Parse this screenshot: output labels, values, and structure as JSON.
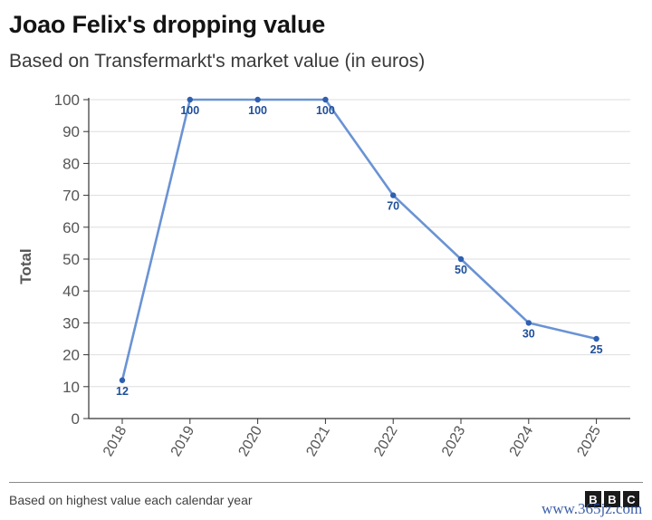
{
  "header": {
    "title": "Joao Felix's dropping value",
    "subtitle": "Based on Transfermarkt's market value (in euros)"
  },
  "footer": {
    "note": "Based on highest value each calendar year",
    "logo_letters": [
      "B",
      "B",
      "C"
    ],
    "watermark": "www.365jz.com"
  },
  "colors": {
    "line": "#6a93d4",
    "point": "#2f5fb0",
    "label": "#1f4f99",
    "grid": "#dedede",
    "axis": "#333333",
    "tick_text": "#555555"
  },
  "chart_data": {
    "type": "line",
    "title": "Joao Felix's dropping value",
    "subtitle": "Based on Transfermarkt's market value (in euros)",
    "xlabel": "",
    "ylabel": "Total",
    "categories": [
      "2018",
      "2019",
      "2020",
      "2021",
      "2022",
      "2023",
      "2024",
      "2025"
    ],
    "series": [
      {
        "values": [
          12,
          100,
          100,
          100,
          70,
          50,
          30,
          25
        ]
      }
    ],
    "data_labels": [
      "12",
      "100",
      "100",
      "100",
      "70",
      "50",
      "30",
      "25"
    ],
    "ylim": [
      0,
      100
    ],
    "yticks": [
      0,
      10,
      20,
      30,
      40,
      50,
      60,
      70,
      80,
      90,
      100
    ],
    "grid": true,
    "legend": "none"
  }
}
